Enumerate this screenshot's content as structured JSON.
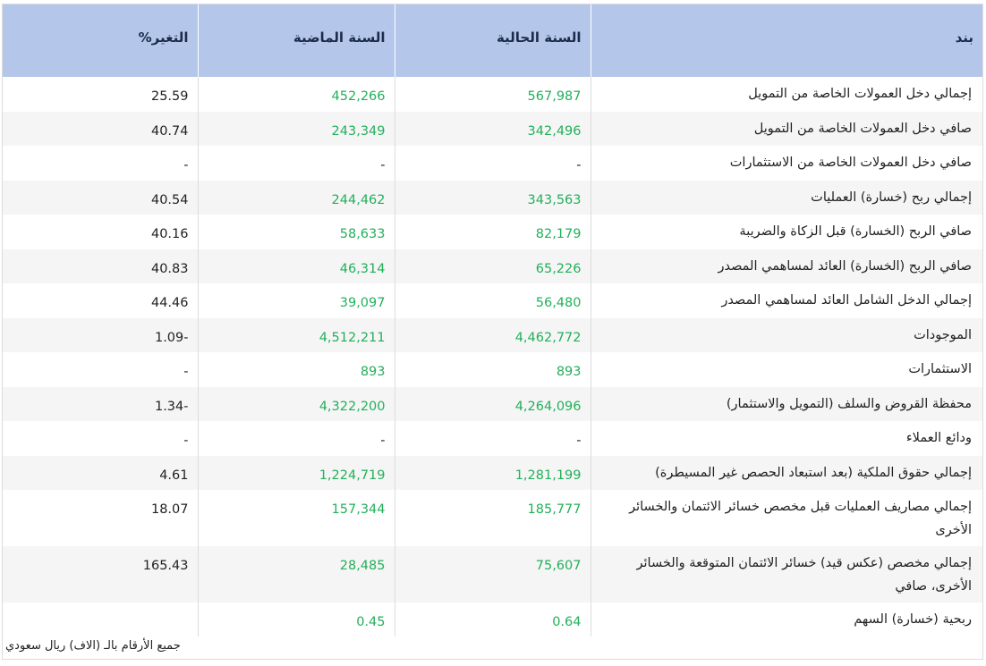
{
  "table": {
    "headers": {
      "item": "بند",
      "current_year": "السنة الحالية",
      "previous_year": "السنة الماضية",
      "change": "التغير%"
    },
    "rows": [
      {
        "item": "إجمالي دخل العمولات الخاصة من التمويل",
        "current": "567,987",
        "previous": "452,266",
        "change": "25.59"
      },
      {
        "item": "صافي دخل العمولات الخاصة من التمويل",
        "current": "342,496",
        "previous": "243,349",
        "change": "40.74"
      },
      {
        "item": "صافي دخل العمولات الخاصة من الاستثمارات",
        "current": "-",
        "previous": "-",
        "change": "-"
      },
      {
        "item": "إجمالي ربح (خسارة) العمليات",
        "current": "343,563",
        "previous": "244,462",
        "change": "40.54"
      },
      {
        "item": "صافي الربح (الخسارة) قبل الزكاة والضريبة",
        "current": "82,179",
        "previous": "58,633",
        "change": "40.16"
      },
      {
        "item": "صافي الربح (الخسارة) العائد لمساهمي المصدر",
        "current": "65,226",
        "previous": "46,314",
        "change": "40.83"
      },
      {
        "item": "إجمالي الدخل الشامل العائد لمساهمي المصدر",
        "current": "56,480",
        "previous": "39,097",
        "change": "44.46"
      },
      {
        "item": "الموجودات",
        "current": "4,462,772",
        "previous": "4,512,211",
        "change": "1.09-"
      },
      {
        "item": "الاستثمارات",
        "current": "893",
        "previous": "893",
        "change": "-"
      },
      {
        "item": "محفظة القروض والسلف (التمويل والاستثمار)",
        "current": "4,264,096",
        "previous": "4,322,200",
        "change": "1.34-"
      },
      {
        "item": "ودائع العملاء",
        "current": "-",
        "previous": "-",
        "change": "-"
      },
      {
        "item": "إجمالي حقوق الملكية (بعد استبعاد الحصص غير المسيطرة)",
        "current": "1,281,199",
        "previous": "1,224,719",
        "change": "4.61"
      },
      {
        "item": "إجمالي مصاريف العمليات قبل مخصص خسائر الائتمان والخسائر الأخرى",
        "current": "185,777",
        "previous": "157,344",
        "change": "18.07"
      },
      {
        "item": "إجمالي مخصص (عكس قيد) خسائر الائتمان المتوقعة والخسائر الأخرى، صافي",
        "current": "75,607",
        "previous": "28,485",
        "change": "165.43"
      },
      {
        "item": "ربحية (خسارة) السهم",
        "current": "0.64",
        "previous": "0.45",
        "change": ""
      }
    ],
    "footnote": "جميع الأرقام بالـ (الاف) ريال سعودي"
  },
  "colors": {
    "header_bg": "#b4c6ea",
    "value_green": "#22b05a",
    "zebra": "#f5f5f5"
  }
}
